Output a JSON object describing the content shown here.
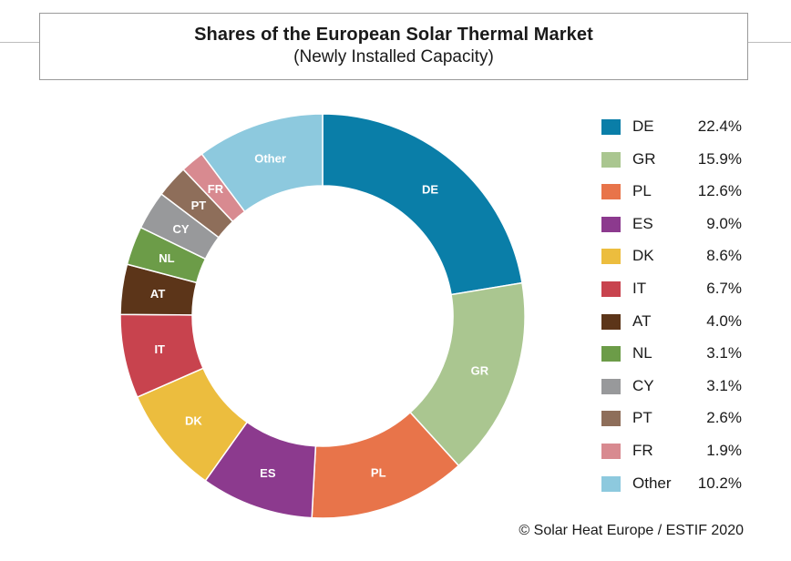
{
  "chart_data": {
    "type": "pie",
    "variant": "donut",
    "title": "Shares of the European Solar Thermal Market",
    "subtitle": "(Newly Installed Capacity)",
    "unit": "%",
    "categories": [
      "DE",
      "GR",
      "PL",
      "ES",
      "DK",
      "IT",
      "AT",
      "NL",
      "CY",
      "PT",
      "FR",
      "Other"
    ],
    "values": [
      22.4,
      15.9,
      12.6,
      9.0,
      8.6,
      6.7,
      4.0,
      3.1,
      3.1,
      2.6,
      1.9,
      10.2
    ],
    "value_labels": [
      "22.4%",
      "15.9%",
      "12.6%",
      "9.0%",
      "8.6%",
      "6.7%",
      "4.0%",
      "3.1%",
      "3.1%",
      "2.6%",
      "1.9%",
      "10.2%"
    ],
    "colors": [
      "#0a7ea8",
      "#aac690",
      "#e8744a",
      "#8c3a8e",
      "#ecbd3e",
      "#c8434e",
      "#5c3519",
      "#6c9c48",
      "#98999b",
      "#8e6e5a",
      "#d88a90",
      "#8dc9de"
    ],
    "legend_position": "right",
    "start": "top, clockwise"
  },
  "copyright": "© Solar Heat Europe / ESTIF 2020"
}
